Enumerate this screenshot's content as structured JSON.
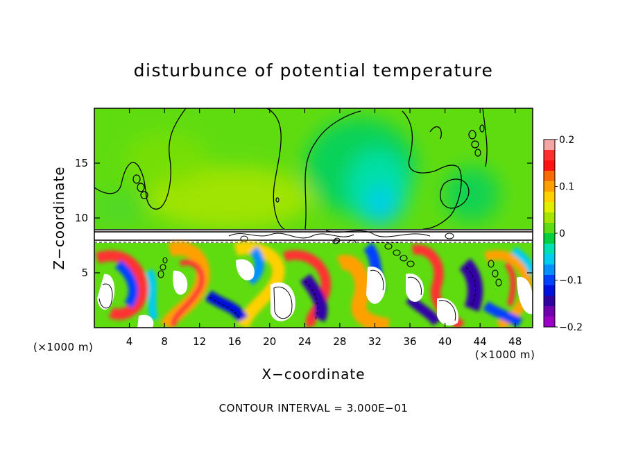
{
  "chart_data": {
    "type": "heatmap",
    "title": "disturbunce of potential temperature",
    "xlabel": "X−coordinate",
    "ylabel": "Z−coordinate",
    "x_unit_left": "(×1000 m)",
    "x_unit_right": "(×1000 m)",
    "xlim": [
      0,
      50
    ],
    "ylim": [
      0,
      20
    ],
    "x_ticks": [
      4,
      8,
      12,
      16,
      20,
      24,
      28,
      32,
      36,
      40,
      44,
      48
    ],
    "x_tick_labels": [
      "4",
      "8",
      "12",
      "16",
      "20",
      "24",
      "28",
      "32",
      "36",
      "40",
      "44",
      "48"
    ],
    "y_ticks": [
      5,
      10,
      15
    ],
    "y_tick_labels": [
      "5",
      "10",
      "15"
    ],
    "footer": "CONTOUR INTERVAL = 3.000E−01",
    "colorbar": {
      "range": [
        -0.2,
        0.2
      ],
      "tick_values": [
        0.2,
        0.1,
        0,
        -0.1,
        -0.2
      ],
      "tick_labels": [
        "0.2",
        "0.1",
        "0",
        "−0.1",
        "−0.2"
      ],
      "colors": [
        "#f4a6a6",
        "#ff3030",
        "#ff1414",
        "#ff6a00",
        "#ffa000",
        "#ffd000",
        "#e0ee00",
        "#a6e400",
        "#5fdc10",
        "#00d040",
        "#00e0b0",
        "#00ccf0",
        "#0090ff",
        "#0040ff",
        "#0010dd",
        "#3000a8",
        "#7000b4",
        "#9a00c8"
      ]
    },
    "layers": [
      {
        "region": "z 9–20 km",
        "value_range": [
          -0.08,
          0.05
        ],
        "dominant": "green, cyan minimum near x 30–32"
      },
      {
        "region": "z 0–8 km",
        "value_range": [
          -0.2,
          0.2
        ],
        "dominant": "turbulent mixed field"
      }
    ],
    "grid": false,
    "legend": "colorbar-right"
  }
}
